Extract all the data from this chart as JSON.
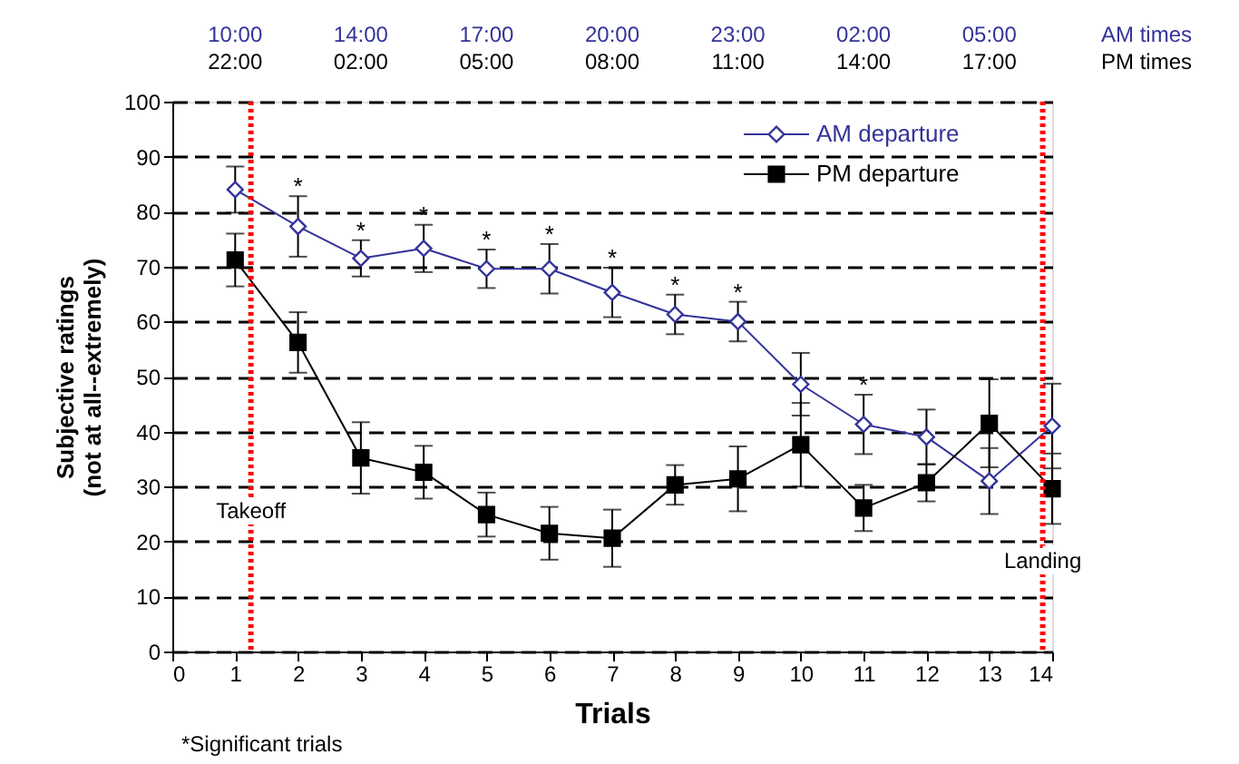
{
  "chart_data": {
    "type": "line",
    "xlabel": "Trials",
    "ylabel": "Subjective ratings\n(not at all--extremely)",
    "x": [
      1,
      2,
      3,
      4,
      5,
      6,
      7,
      8,
      9,
      10,
      11,
      12,
      13,
      14
    ],
    "series": [
      {
        "name": "AM departure",
        "color": "#333399",
        "marker": "diamond",
        "values": [
          84,
          77.3,
          71.5,
          73.3,
          69.6,
          69.6,
          65.3,
          61.3,
          60,
          48.6,
          41.3,
          39,
          31,
          41
        ],
        "errors": [
          4.2,
          5.5,
          3.3,
          4.3,
          3.5,
          4.5,
          4.5,
          3.6,
          3.6,
          5.7,
          5.4,
          5,
          6,
          7.7
        ]
      },
      {
        "name": "PM departure",
        "color": "#000000",
        "marker": "square",
        "values": [
          71.2,
          56.2,
          35.2,
          32.6,
          24.9,
          21.5,
          20.6,
          30.3,
          31.4,
          37.6,
          26.1,
          30.7,
          41.5,
          29.6
        ],
        "errors": [
          4.8,
          5.5,
          6.5,
          4.8,
          4,
          4.8,
          5.2,
          3.6,
          5.9,
          7.6,
          4.2,
          3.4,
          8,
          6.4
        ]
      }
    ],
    "xlim": [
      0,
      14
    ],
    "xticks": [
      0,
      1,
      2,
      3,
      4,
      5,
      6,
      7,
      8,
      9,
      10,
      11,
      12,
      13,
      14
    ],
    "ylim": [
      0,
      100
    ],
    "yticks": [
      0,
      10,
      20,
      30,
      40,
      50,
      60,
      70,
      80,
      90,
      100
    ],
    "ref_lines": [
      {
        "axis": "x",
        "value": 1.25,
        "label": "Takeoff",
        "color": "#ff0000",
        "line_style": "dotted"
      },
      {
        "axis": "x",
        "value": 13.85,
        "label": "Landing",
        "color": "#ff0000",
        "line_style": "dotted"
      }
    ],
    "annotations": [
      {
        "text": "*",
        "x": 2,
        "y": 77.3
      },
      {
        "text": "*",
        "x": 3,
        "y": 71.5
      },
      {
        "text": "*",
        "x": 4,
        "y": 73.3
      },
      {
        "text": "*",
        "x": 5,
        "y": 69.6
      },
      {
        "text": "*",
        "x": 6,
        "y": 69.6
      },
      {
        "text": "*",
        "x": 7,
        "y": 65.3
      },
      {
        "text": "*",
        "x": 8,
        "y": 61.3
      },
      {
        "text": "*",
        "x": 9,
        "y": 60
      },
      {
        "text": "*",
        "x": 11,
        "y": 41.3
      },
      "10:00",
      "14:00",
      "17:00",
      "20:00",
      "23:00",
      "02:00",
      "05:00",
      "AM times",
      "22:00",
      "02:00",
      "05:00",
      "08:00",
      "11:00",
      "14:00",
      "17:00",
      "PM times",
      "*Significant trials"
    ],
    "grid": "y",
    "legend": "top right",
    "line_style": "solid"
  }
}
